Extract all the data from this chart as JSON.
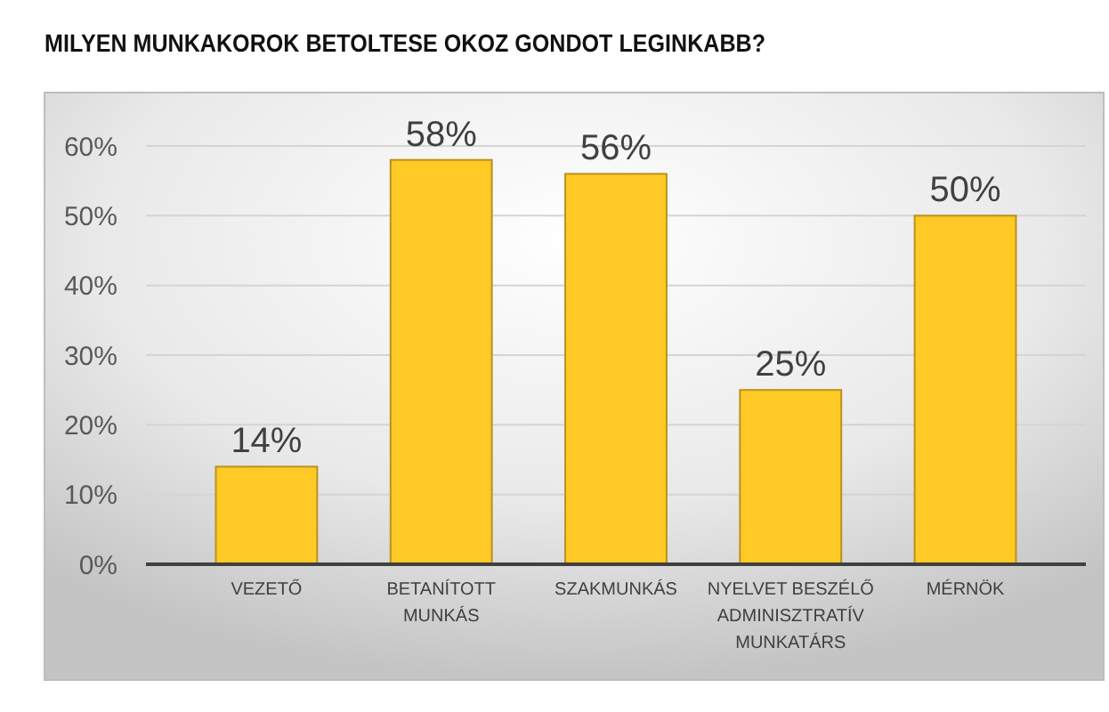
{
  "chart_data": {
    "type": "bar",
    "title": "MILYEN MUNKAKOROK BETOLTESE OKOZ GONDOT LEGINKABB?",
    "categories": [
      "VEZETŐ",
      "BETANÍTOTT MUNKÁS",
      "SZAKMUNKÁS",
      "NYELVET BESZÉLŐ ADMINISZTRATÍV MUNKATÁRS",
      "MÉRNÖK"
    ],
    "values": [
      14,
      58,
      56,
      25,
      50
    ],
    "value_labels": [
      "14%",
      "58%",
      "56%",
      "25%",
      "50%"
    ],
    "color": "#ffc926",
    "ylim": [
      0,
      60
    ],
    "yticks": [
      {
        "value": 0,
        "label": "0%"
      },
      {
        "value": 10,
        "label": "10%"
      },
      {
        "value": 20,
        "label": "20%"
      },
      {
        "value": 30,
        "label": "30%"
      },
      {
        "value": 40,
        "label": "40%"
      },
      {
        "value": 50,
        "label": "50%"
      },
      {
        "value": 60,
        "label": "60%"
      }
    ],
    "grid": "y"
  }
}
